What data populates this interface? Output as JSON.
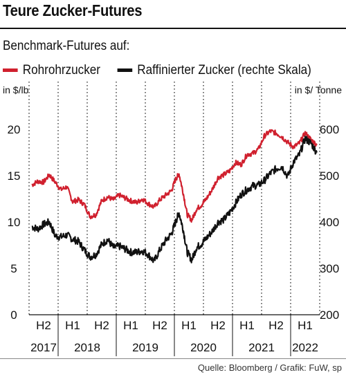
{
  "header": {
    "title": "Teure Zucker-Futures",
    "subtitle": "Benchmark-Futures auf:"
  },
  "legend": {
    "items": [
      {
        "label": "Rohrohrzucker",
        "color": "#d0202e"
      },
      {
        "label": "Raffinierter Zucker (rechte Skala)",
        "color": "#111111"
      }
    ]
  },
  "footer": {
    "source": "Quelle: Bloomberg / Grafik: FuW, sp"
  },
  "chart_data": {
    "type": "line",
    "title": "Teure Zucker-Futures",
    "subtitle": "Benchmark-Futures auf:",
    "left_axis": {
      "label": "in $/lb",
      "ticks": [
        0,
        5,
        10,
        15,
        20
      ],
      "range": [
        0,
        22
      ]
    },
    "right_axis": {
      "label": "in $/ Tonne",
      "ticks": [
        200,
        300,
        400,
        500,
        600
      ],
      "range": [
        200,
        630
      ]
    },
    "x_axis": {
      "period_labels": [
        "H2",
        "H1",
        "H2",
        "H1",
        "H2",
        "H1",
        "H2",
        "H1",
        "H2",
        "H1"
      ],
      "year_labels": [
        "2017",
        "2018",
        "2019",
        "2020",
        "2021",
        "2022"
      ],
      "range": [
        "2017-07",
        "2022-06"
      ]
    },
    "grid": "vertical dotted at half-year boundaries",
    "series": [
      {
        "name": "Rohrohrzucker",
        "axis": "left",
        "color": "#d0202e",
        "x": [
          2017.55,
          2017.65,
          2017.75,
          2017.85,
          2017.95,
          2018.05,
          2018.15,
          2018.25,
          2018.35,
          2018.45,
          2018.55,
          2018.65,
          2018.75,
          2018.85,
          2018.95,
          2019.05,
          2019.15,
          2019.25,
          2019.35,
          2019.45,
          2019.55,
          2019.65,
          2019.75,
          2019.85,
          2019.95,
          2020.02,
          2020.08,
          2020.15,
          2020.22,
          2020.3,
          2020.38,
          2020.46,
          2020.55,
          2020.65,
          2020.75,
          2020.85,
          2020.95,
          2021.05,
          2021.15,
          2021.25,
          2021.35,
          2021.45,
          2021.55,
          2021.65,
          2021.75,
          2021.85,
          2021.95,
          2022.05,
          2022.15,
          2022.25,
          2022.35,
          2022.45
        ],
        "values": [
          14.0,
          14.4,
          14.3,
          15.1,
          14.3,
          13.5,
          13.8,
          12.2,
          12.4,
          11.9,
          10.6,
          10.8,
          12.3,
          12.7,
          12.4,
          12.9,
          12.6,
          12.3,
          12.1,
          12.5,
          12.0,
          11.6,
          12.4,
          12.9,
          13.4,
          14.6,
          15.2,
          13.2,
          10.8,
          10.2,
          11.4,
          11.8,
          12.5,
          13.5,
          14.8,
          15.1,
          15.5,
          16.4,
          16.2,
          17.3,
          17.4,
          17.9,
          19.3,
          19.8,
          19.6,
          19.2,
          18.6,
          18.1,
          18.5,
          19.6,
          18.9,
          18.3
        ]
      },
      {
        "name": "Raffinierter Zucker (rechte Skala)",
        "axis": "right",
        "color": "#111111",
        "x": [
          2017.55,
          2017.65,
          2017.75,
          2017.85,
          2017.95,
          2018.05,
          2018.15,
          2018.25,
          2018.35,
          2018.45,
          2018.55,
          2018.65,
          2018.75,
          2018.85,
          2018.95,
          2019.05,
          2019.15,
          2019.25,
          2019.35,
          2019.45,
          2019.55,
          2019.65,
          2019.75,
          2019.85,
          2019.95,
          2020.02,
          2020.08,
          2020.15,
          2020.22,
          2020.3,
          2020.38,
          2020.46,
          2020.55,
          2020.65,
          2020.75,
          2020.85,
          2020.95,
          2021.05,
          2021.15,
          2021.25,
          2021.35,
          2021.45,
          2021.55,
          2021.65,
          2021.75,
          2021.85,
          2021.95,
          2022.05,
          2022.15,
          2022.25,
          2022.35,
          2022.45
        ],
        "values": [
          390,
          385,
          395,
          400,
          370,
          368,
          372,
          363,
          358,
          340,
          325,
          330,
          352,
          362,
          345,
          348,
          342,
          335,
          335,
          338,
          330,
          315,
          340,
          360,
          375,
          400,
          420,
          385,
          335,
          318,
          345,
          352,
          365,
          380,
          400,
          405,
          420,
          440,
          460,
          470,
          478,
          480,
          490,
          505,
          515,
          520,
          498,
          530,
          545,
          580,
          570,
          550
        ]
      }
    ]
  }
}
